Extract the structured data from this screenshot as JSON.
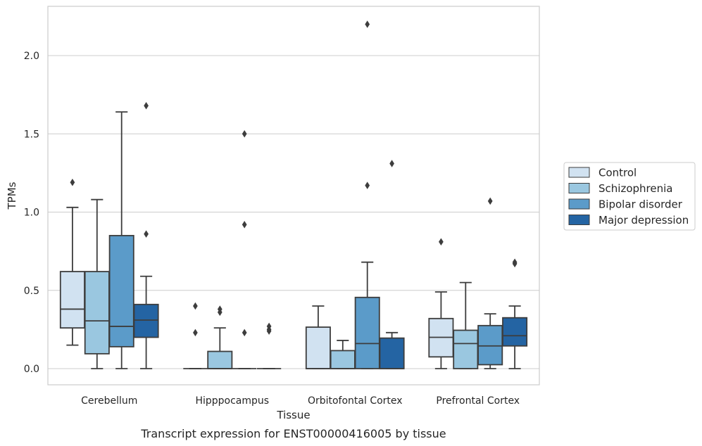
{
  "caption": "Transcript expression for ENST00000416005 by tissue",
  "chart_data": {
    "type": "box",
    "xlabel": "Tissue",
    "ylabel": "TPMs",
    "ylim": [
      -0.11,
      2.33
    ],
    "yticks": [
      0.0,
      0.5,
      1.0,
      1.5,
      2.0
    ],
    "ytick_labels": [
      "0.0",
      "0.5",
      "1.0",
      "1.5",
      "2.0"
    ],
    "grid": "horizontal",
    "legend_position": "right, outside plot",
    "categories": [
      "Cerebellum",
      "Hipppocampus",
      "Orbitofontal Cortex",
      "Prefrontal Cortex"
    ],
    "series": [
      {
        "name": "Control",
        "color": "#d1e2f1",
        "boxes": [
          {
            "q1": 0.26,
            "median": 0.38,
            "q3": 0.62,
            "whisker_low": 0.15,
            "whisker_high": 1.03,
            "outliers": [
              1.19
            ]
          },
          {
            "q1": 0.0,
            "median": 0.0,
            "q3": 0.0,
            "whisker_low": 0.0,
            "whisker_high": 0.0,
            "outliers": [
              0.4,
              0.23
            ]
          },
          {
            "q1": 0.0,
            "median": 0.0,
            "q3": 0.265,
            "whisker_low": 0.0,
            "whisker_high": 0.4,
            "outliers": []
          },
          {
            "q1": 0.075,
            "median": 0.2,
            "q3": 0.32,
            "whisker_low": 0.0,
            "whisker_high": 0.49,
            "outliers": [
              0.81
            ]
          }
        ]
      },
      {
        "name": "Schizophrenia",
        "color": "#9ac7e0",
        "boxes": [
          {
            "q1": 0.095,
            "median": 0.305,
            "q3": 0.62,
            "whisker_low": 0.0,
            "whisker_high": 1.08,
            "outliers": []
          },
          {
            "q1": 0.0,
            "median": 0.0,
            "q3": 0.11,
            "whisker_low": 0.0,
            "whisker_high": 0.26,
            "outliers": [
              0.38,
              0.36
            ]
          },
          {
            "q1": 0.0,
            "median": 0.0,
            "q3": 0.115,
            "whisker_low": 0.0,
            "whisker_high": 0.18,
            "outliers": []
          },
          {
            "q1": 0.0,
            "median": 0.16,
            "q3": 0.245,
            "whisker_low": 0.0,
            "whisker_high": 0.55,
            "outliers": []
          }
        ]
      },
      {
        "name": "Bipolar disorder",
        "color": "#5b9bc9",
        "boxes": [
          {
            "q1": 0.14,
            "median": 0.27,
            "q3": 0.85,
            "whisker_low": 0.0,
            "whisker_high": 1.64,
            "outliers": []
          },
          {
            "q1": 0.0,
            "median": 0.0,
            "q3": 0.0,
            "whisker_low": 0.0,
            "whisker_high": 0.0,
            "outliers": [
              1.5,
              0.92,
              0.23
            ]
          },
          {
            "q1": 0.0,
            "median": 0.16,
            "q3": 0.455,
            "whisker_low": 0.0,
            "whisker_high": 0.68,
            "outliers": [
              2.2,
              1.17
            ]
          },
          {
            "q1": 0.025,
            "median": 0.145,
            "q3": 0.275,
            "whisker_low": 0.0,
            "whisker_high": 0.35,
            "outliers": [
              1.07
            ]
          }
        ]
      },
      {
        "name": "Major depression",
        "color": "#2464a3",
        "boxes": [
          {
            "q1": 0.2,
            "median": 0.31,
            "q3": 0.41,
            "whisker_low": 0.0,
            "whisker_high": 0.59,
            "outliers": [
              1.68,
              0.86
            ]
          },
          {
            "q1": 0.0,
            "median": 0.0,
            "q3": 0.0,
            "whisker_low": 0.0,
            "whisker_high": 0.0,
            "outliers": [
              0.27,
              0.25,
              0.24
            ]
          },
          {
            "q1": 0.0,
            "median": 0.0,
            "q3": 0.195,
            "whisker_low": 0.0,
            "whisker_high": 0.23,
            "outliers": [
              1.31
            ]
          },
          {
            "q1": 0.145,
            "median": 0.21,
            "q3": 0.325,
            "whisker_low": 0.0,
            "whisker_high": 0.4,
            "outliers": [
              0.68,
              0.67
            ]
          }
        ]
      }
    ]
  }
}
